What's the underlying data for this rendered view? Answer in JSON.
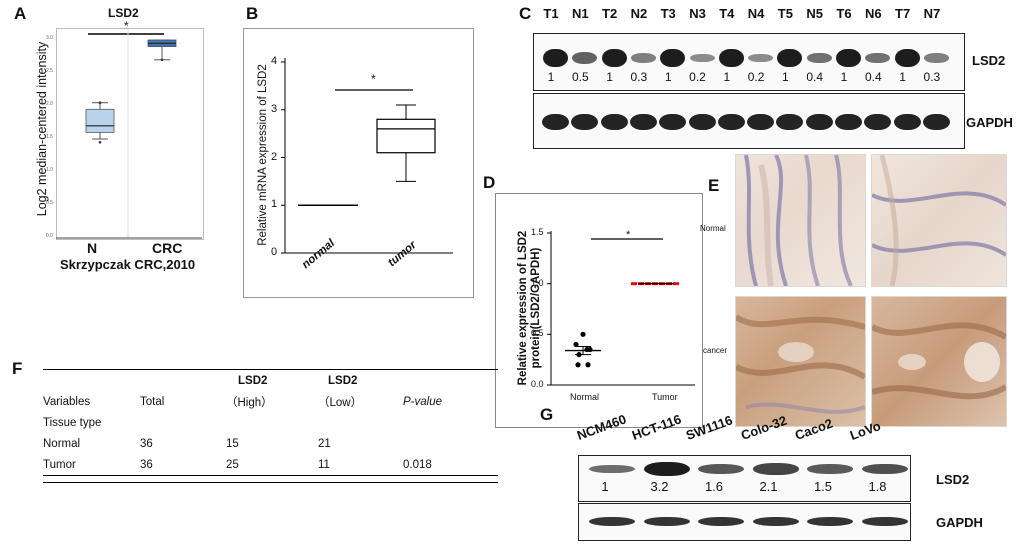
{
  "panels": {
    "A": {
      "label": "A",
      "title": "LSD2",
      "sig": "*",
      "ylabel": "Log2 median-centered intensity",
      "yticks": [
        "3.0",
        "2.5",
        "2.0",
        "1.5",
        "1.0",
        "0.5",
        "0.0"
      ],
      "xticks": [
        "N",
        "CRC"
      ],
      "caption": "Skrzypczak CRC,2010"
    },
    "B": {
      "label": "B",
      "ylabel": "Relative mRNA expression of LSD2",
      "yticks": [
        "4",
        "3",
        "2",
        "1",
        "0"
      ],
      "xticks": [
        "normal",
        "tumor"
      ],
      "sig": "*"
    },
    "C": {
      "label": "C",
      "lanes": [
        "T1",
        "N1",
        "T2",
        "N2",
        "T3",
        "N3",
        "T4",
        "N4",
        "T5",
        "N5",
        "T6",
        "N6",
        "T7",
        "N7"
      ],
      "values": [
        "1",
        "0.5",
        "1",
        "0.3",
        "1",
        "0.2",
        "1",
        "0.2",
        "1",
        "0.4",
        "1",
        "0.4",
        "1",
        "0.3"
      ],
      "row1_label": "LSD2",
      "row2_label": "GAPDH"
    },
    "D": {
      "label": "D",
      "ylabel": "Relative expression of LSD2 protein(LSD2/GAPDH)",
      "yticks": [
        "1.5",
        "1.0",
        "0.5",
        "0.0"
      ],
      "xticks": [
        "Normal",
        "Tumor"
      ],
      "sig": "*"
    },
    "E": {
      "label": "E",
      "row1": "Normal",
      "row2": "cancer"
    },
    "F": {
      "label": "F",
      "header1": [
        "",
        "",
        "LSD2",
        "LSD2",
        ""
      ],
      "header2": [
        "Variables",
        "Total",
        "（High）",
        "（Low）",
        "P-value"
      ],
      "rows": [
        [
          "Tissue type",
          "",
          "",
          "",
          ""
        ],
        [
          "Normal",
          "36",
          "15",
          "21",
          ""
        ],
        [
          "Tumor",
          "36",
          "25",
          "11",
          "0.018"
        ]
      ]
    },
    "G": {
      "label": "G",
      "lanes": [
        "NCM460",
        "HCT-116",
        "SW1116",
        "Colo-32",
        "Caco2",
        "LoVo"
      ],
      "values": [
        "1",
        "3.2",
        "1.6",
        "2.1",
        "1.5",
        "1.8"
      ],
      "row1_label": "LSD2",
      "row2_label": "GAPDH"
    }
  },
  "chart_data": [
    {
      "type": "box",
      "panel": "A",
      "title": "LSD2",
      "xlabel": "Skrzypczak CRC,2010",
      "ylabel": "Log2 median-centered intensity",
      "categories": [
        "N",
        "CRC"
      ],
      "ylim": [
        0,
        3.0
      ],
      "boxes": [
        {
          "name": "N",
          "whisker_low": 1.5,
          "q1": 1.6,
          "median": 1.7,
          "q3": 1.95,
          "whisker_high": 2.05,
          "outliers": [
            1.45,
            2.05
          ]
        },
        {
          "name": "CRC",
          "whisker_low": 2.7,
          "q1": 2.9,
          "median": 2.95,
          "q3": 3.0,
          "whisker_high": 3.0,
          "outliers": [
            2.7
          ]
        }
      ]
    },
    {
      "type": "box",
      "panel": "B",
      "ylabel": "Relative mRNA expression of LSD2",
      "categories": [
        "normal",
        "tumor"
      ],
      "ylim": [
        0,
        4
      ],
      "boxes": [
        {
          "name": "normal",
          "whisker_low": 1,
          "q1": 1,
          "median": 1,
          "q3": 1,
          "whisker_high": 1
        },
        {
          "name": "tumor",
          "whisker_low": 1.5,
          "q1": 2.1,
          "median": 2.6,
          "q3": 2.8,
          "whisker_high": 3.1
        }
      ]
    },
    {
      "type": "scatter",
      "panel": "D",
      "ylabel": "Relative expression of LSD2 protein(LSD2/GAPDH)",
      "categories": [
        "Normal",
        "Tumor"
      ],
      "ylim": [
        0,
        1.5
      ],
      "series": [
        {
          "name": "Normal",
          "color": "#000000",
          "values": [
            0.5,
            0.4,
            0.35,
            0.3,
            0.35,
            0.2,
            0.2
          ],
          "mean": 0.34,
          "sem": 0.04
        },
        {
          "name": "Tumor",
          "color": "#ff0000",
          "values": [
            1,
            1,
            1,
            1,
            1,
            1,
            1
          ],
          "mean": 1.0,
          "sem": 0.0
        }
      ]
    },
    {
      "type": "table",
      "panel": "F",
      "columns": [
        "Variables",
        "Total",
        "LSD2 (High)",
        "LSD2 (Low)",
        "P-value"
      ],
      "rows": [
        [
          "Tissue type",
          "",
          "",
          "",
          ""
        ],
        [
          "Normal",
          "36",
          "15",
          "21",
          ""
        ],
        [
          "Tumor",
          "36",
          "25",
          "11",
          "0.018"
        ]
      ]
    }
  ]
}
